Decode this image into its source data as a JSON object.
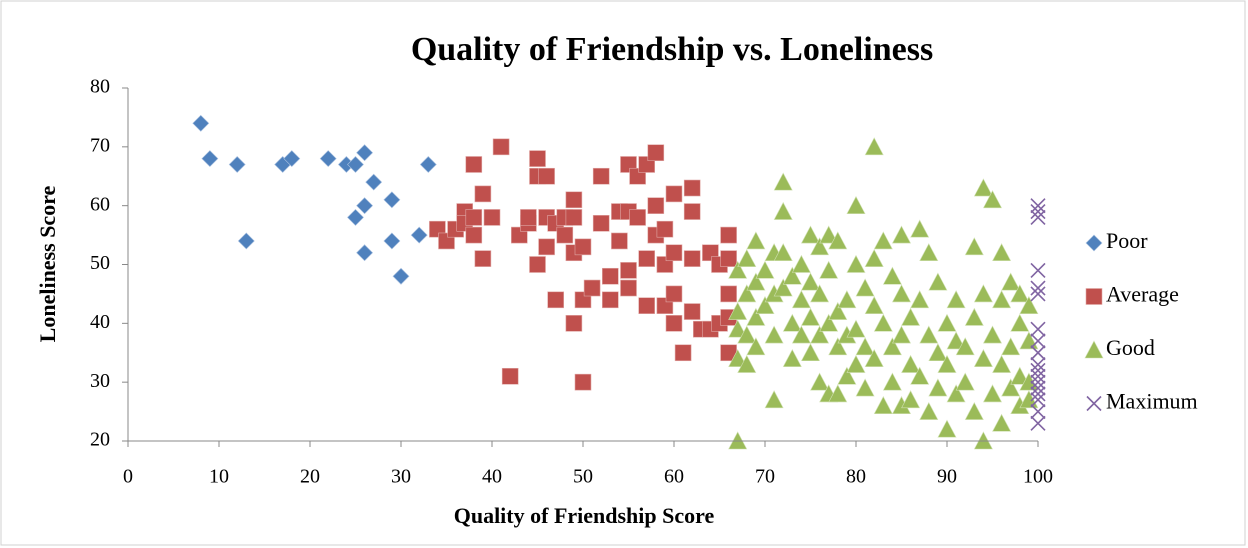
{
  "chart_data": {
    "type": "scatter",
    "title": "Quality of Friendship vs. Loneliness",
    "x_label": "Quality of Friendship Score",
    "y_label": "Loneliness Score",
    "xlim": [
      0,
      100
    ],
    "ylim": [
      20,
      80
    ],
    "xticks": [
      0,
      10,
      20,
      30,
      40,
      50,
      60,
      70,
      80,
      90,
      100
    ],
    "yticks": [
      20,
      30,
      40,
      50,
      60,
      70,
      80
    ],
    "grid": false,
    "legend": "right",
    "series": [
      {
        "name": "Poor",
        "color": "#4f81bd",
        "marker": "diamond",
        "x": [
          8,
          9,
          12,
          13,
          17,
          18,
          22,
          24,
          25,
          26,
          26,
          25,
          26,
          27,
          29,
          29,
          30,
          32,
          33
        ],
        "values": [
          74,
          68,
          67,
          54,
          67,
          68,
          68,
          67,
          67,
          69,
          60,
          58,
          52,
          64,
          61,
          54,
          48,
          55,
          67
        ]
      },
      {
        "name": "Average",
        "color": "#c0504d",
        "marker": "square",
        "x": [
          34,
          35,
          36,
          37,
          37,
          38,
          38,
          38,
          39,
          39,
          40,
          41,
          42,
          43,
          44,
          44,
          45,
          45,
          45,
          46,
          46,
          46,
          47,
          47,
          48,
          48,
          49,
          49,
          49,
          49,
          50,
          50,
          50,
          51,
          52,
          52,
          53,
          53,
          54,
          54,
          55,
          55,
          55,
          55,
          56,
          56,
          57,
          57,
          57,
          58,
          58,
          58,
          59,
          59,
          59,
          60,
          60,
          60,
          60,
          61,
          62,
          62,
          62,
          62,
          63,
          64,
          64,
          65,
          65,
          66,
          66,
          66,
          66,
          66
        ],
        "values": [
          56,
          54,
          56,
          59,
          57,
          55,
          58,
          67,
          62,
          51,
          58,
          70,
          31,
          55,
          57,
          58,
          68,
          65,
          50,
          58,
          53,
          65,
          57,
          44,
          58,
          55,
          61,
          58,
          52,
          40,
          53,
          44,
          30,
          46,
          65,
          57,
          48,
          44,
          59,
          54,
          59,
          67,
          49,
          46,
          65,
          58,
          67,
          51,
          43,
          69,
          60,
          55,
          56,
          50,
          43,
          62,
          52,
          45,
          40,
          35,
          63,
          59,
          51,
          42,
          39,
          52,
          39,
          50,
          40,
          55,
          51,
          45,
          41,
          35
        ]
      },
      {
        "name": "Good",
        "color": "#9bbb59",
        "marker": "triangle",
        "x": [
          67,
          67,
          67,
          67,
          67,
          68,
          68,
          68,
          68,
          69,
          69,
          69,
          69,
          70,
          70,
          71,
          71,
          71,
          71,
          72,
          72,
          72,
          72,
          73,
          73,
          73,
          74,
          74,
          74,
          75,
          75,
          75,
          75,
          76,
          76,
          76,
          76,
          77,
          77,
          77,
          77,
          78,
          78,
          78,
          78,
          79,
          79,
          79,
          80,
          80,
          80,
          80,
          81,
          81,
          81,
          82,
          82,
          82,
          82,
          83,
          83,
          83,
          84,
          84,
          84,
          85,
          85,
          85,
          85,
          86,
          86,
          86,
          87,
          87,
          87,
          88,
          88,
          88,
          89,
          89,
          89,
          90,
          90,
          90,
          91,
          91,
          91,
          92,
          92,
          93,
          93,
          93,
          94,
          94,
          94,
          94,
          95,
          95,
          95,
          96,
          96,
          96,
          96,
          97,
          97,
          97,
          98,
          98,
          98,
          98,
          99,
          99,
          99,
          99
        ],
        "values": [
          20,
          49,
          42,
          39,
          34,
          51,
          45,
          38,
          33,
          54,
          47,
          41,
          36,
          49,
          43,
          52,
          45,
          38,
          27,
          64,
          59,
          52,
          46,
          48,
          40,
          34,
          50,
          44,
          38,
          55,
          47,
          41,
          35,
          53,
          45,
          38,
          30,
          55,
          49,
          40,
          28,
          54,
          42,
          36,
          28,
          44,
          38,
          31,
          60,
          50,
          39,
          33,
          46,
          36,
          29,
          70,
          51,
          43,
          34,
          54,
          40,
          26,
          48,
          36,
          30,
          55,
          45,
          38,
          26,
          41,
          33,
          27,
          56,
          44,
          31,
          52,
          38,
          25,
          47,
          35,
          29,
          40,
          33,
          22,
          44,
          37,
          28,
          36,
          30,
          53,
          41,
          25,
          63,
          45,
          34,
          20,
          61,
          38,
          28,
          52,
          44,
          33,
          23,
          47,
          36,
          29,
          45,
          40,
          31,
          26,
          43,
          37,
          30,
          27
        ]
      },
      {
        "name": "Maximum",
        "color": "#8064a2",
        "marker": "x",
        "x": [
          100,
          100,
          100,
          100,
          100,
          100,
          100,
          100,
          100,
          100,
          100,
          100,
          100,
          100,
          100,
          100,
          100,
          100
        ],
        "values": [
          60,
          59,
          58,
          49,
          46,
          45,
          39,
          37,
          35,
          33,
          32,
          31,
          30,
          29,
          28,
          27,
          25,
          23
        ]
      }
    ]
  }
}
